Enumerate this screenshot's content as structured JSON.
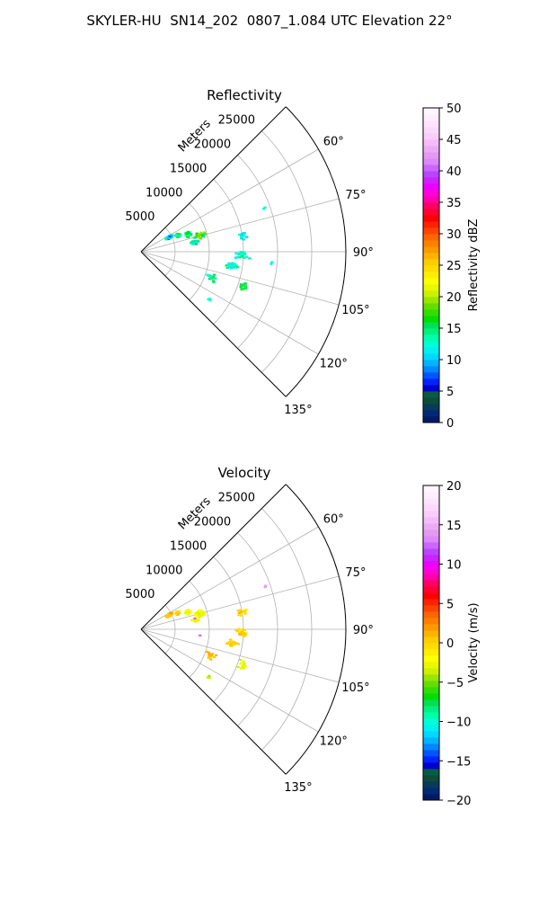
{
  "figure": {
    "suptitle": "SKYLER-HU  SN14_202  0807_1.084 UTC Elevation 22°"
  },
  "colors": {
    "grid": "#b0b0b0",
    "axis": "#000000"
  },
  "chart_data": [
    {
      "type": "ppi-sector",
      "title": "Reflectivity",
      "range_label": "Meters",
      "range_ticks": [
        5000,
        10000,
        15000,
        20000,
        25000
      ],
      "range_tick_labels": [
        "5000",
        "10000",
        "15000",
        "20000",
        "25000"
      ],
      "range_max": 30000,
      "azimuth_range_deg": [
        45,
        135
      ],
      "azimuth_ticks_deg": [
        60,
        75,
        90,
        105,
        120,
        135
      ],
      "azimuth_tick_labels": [
        "60°",
        "75°",
        "90°",
        "105°",
        "120°",
        "135°"
      ],
      "colorbar": {
        "label": "Reflectivity dBZ",
        "vmin": 0,
        "vmax": 50,
        "ticks": [
          0,
          5,
          10,
          15,
          20,
          25,
          30,
          35,
          40,
          45,
          50
        ],
        "tick_labels": [
          "0",
          "5",
          "10",
          "15",
          "20",
          "25",
          "30",
          "35",
          "40",
          "45",
          "50"
        ],
        "colors": [
          "#001a66",
          "#002a77",
          "#0a3a5a",
          "#0b4d3a",
          "#0a5c40",
          "#0000cc",
          "#0022ff",
          "#0055ff",
          "#0088ff",
          "#00b4ff",
          "#00d8ff",
          "#00f0f0",
          "#00ffd8",
          "#00ffaa",
          "#00f080",
          "#00e050",
          "#00dd00",
          "#33dd00",
          "#66dd00",
          "#99e600",
          "#ccf000",
          "#e8f800",
          "#ffff00",
          "#ffee00",
          "#ffdd00",
          "#ffcc00",
          "#ffb300",
          "#ff9900",
          "#ff7f00",
          "#ff6600",
          "#ff4400",
          "#ff2200",
          "#ff0000",
          "#ff0033",
          "#ff0066",
          "#ff00aa",
          "#ff00dd",
          "#ee00ff",
          "#cc22ff",
          "#bb44ff",
          "#cc66ff",
          "#dd88ff",
          "#e399ee",
          "#ecaaf5",
          "#f4bbf8",
          "#f8cdfa",
          "#fbd9fc",
          "#fde3fd",
          "#feeefe",
          "#fff5ff"
        ]
      },
      "clusters": [
        {
          "az": 63,
          "r": 4700,
          "dr": 750,
          "daz": 4,
          "n": 45,
          "v": 10,
          "spread": 4,
          "seed": 11
        },
        {
          "az": 66,
          "r": 5900,
          "dr": 500,
          "daz": 4,
          "n": 32,
          "v": 16,
          "spread": 4,
          "seed": 12
        },
        {
          "az": 70,
          "r": 7400,
          "dr": 550,
          "daz": 4,
          "n": 40,
          "v": 14,
          "spread": 4,
          "seed": 13
        },
        {
          "az": 75,
          "r": 8900,
          "dr": 1100,
          "daz": 4,
          "n": 44,
          "v": 17,
          "spread": 4,
          "seed": 14
        },
        {
          "az": 80,
          "r": 8000,
          "dr": 800,
          "daz": 3,
          "n": 15,
          "v": 12,
          "spread": 3,
          "seed": 15
        },
        {
          "az": 81,
          "r": 15100,
          "dr": 900,
          "daz": 3,
          "n": 16,
          "v": 12,
          "spread": 2,
          "seed": 16
        },
        {
          "az": 92,
          "r": 14800,
          "dr": 1500,
          "daz": 3,
          "n": 30,
          "v": 13,
          "spread": 2,
          "seed": 17
        },
        {
          "az": 99,
          "r": 13400,
          "dr": 1200,
          "daz": 3,
          "n": 32,
          "v": 13,
          "spread": 2,
          "seed": 18
        },
        {
          "az": 110,
          "r": 11000,
          "dr": 1200,
          "daz": 4,
          "n": 20,
          "v": 14,
          "spread": 2,
          "seed": 19
        },
        {
          "az": 109,
          "r": 15800,
          "dr": 700,
          "daz": 3,
          "n": 20,
          "v": 16,
          "spread": 2,
          "seed": 20
        },
        {
          "az": 71,
          "r": 19200,
          "dr": 300,
          "daz": 1,
          "n": 2,
          "v": 13,
          "spread": 1,
          "seed": 21
        },
        {
          "az": 125,
          "r": 12200,
          "dr": 300,
          "daz": 1,
          "n": 3,
          "v": 12,
          "spread": 1,
          "seed": 22
        },
        {
          "az": 95,
          "r": 19200,
          "dr": 200,
          "daz": 1,
          "n": 2,
          "v": 12,
          "spread": 1,
          "seed": 23
        }
      ]
    },
    {
      "type": "ppi-sector",
      "title": "Velocity",
      "range_label": "Meters",
      "range_ticks": [
        5000,
        10000,
        15000,
        20000,
        25000
      ],
      "range_tick_labels": [
        "5000",
        "10000",
        "15000",
        "20000",
        "25000"
      ],
      "range_max": 30000,
      "azimuth_range_deg": [
        45,
        135
      ],
      "azimuth_ticks_deg": [
        60,
        75,
        90,
        105,
        120,
        135
      ],
      "azimuth_tick_labels": [
        "60°",
        "75°",
        "90°",
        "105°",
        "120°",
        "135°"
      ],
      "colorbar": {
        "label": "Velocity (m/s)",
        "vmin": -20,
        "vmax": 20,
        "ticks": [
          -20,
          -15,
          -10,
          -5,
          0,
          5,
          10,
          15,
          20
        ],
        "tick_labels": [
          "−20",
          "−15",
          "−10",
          "−5",
          "0",
          "5",
          "10",
          "15",
          "20"
        ],
        "colors": [
          "#001a66",
          "#002a77",
          "#0a3a5a",
          "#0b4d3a",
          "#0a5c40",
          "#0000cc",
          "#0022ff",
          "#0055ff",
          "#0088ff",
          "#00b4ff",
          "#00d8ff",
          "#00f0f0",
          "#00ffd8",
          "#00ffaa",
          "#00f080",
          "#00e050",
          "#00dd00",
          "#33dd00",
          "#66dd00",
          "#99e600",
          "#ccf000",
          "#e8f800",
          "#ffff00",
          "#ffee00",
          "#ffdd00",
          "#ffcc00",
          "#ffb300",
          "#ff9900",
          "#ff7f00",
          "#ff6600",
          "#ff4400",
          "#ff2200",
          "#ff0000",
          "#ff0033",
          "#ff0066",
          "#ff00aa",
          "#ff00dd",
          "#ee00ff",
          "#cc22ff",
          "#bb44ff",
          "#cc66ff",
          "#dd88ff",
          "#e399ee",
          "#ecaaf5",
          "#f4bbf8",
          "#f8cdfa",
          "#fbd9fc",
          "#fde3fd",
          "#feeefe",
          "#fff5ff"
        ]
      },
      "clusters": [
        {
          "az": 63,
          "r": 4700,
          "dr": 750,
          "daz": 4,
          "n": 45,
          "v": 1,
          "spread": 1,
          "seed": 31
        },
        {
          "az": 66,
          "r": 5900,
          "dr": 500,
          "daz": 4,
          "n": 32,
          "v": 0,
          "spread": 1,
          "seed": 32
        },
        {
          "az": 70,
          "r": 7400,
          "dr": 550,
          "daz": 4,
          "n": 40,
          "v": -2,
          "spread": 1,
          "seed": 33
        },
        {
          "az": 75,
          "r": 8900,
          "dr": 1100,
          "daz": 4,
          "n": 44,
          "v": -3,
          "spread": 1,
          "seed": 34
        },
        {
          "az": 80,
          "r": 8000,
          "dr": 800,
          "daz": 3,
          "n": 15,
          "v": -2,
          "spread": 1,
          "seed": 35
        },
        {
          "az": 81,
          "r": 15100,
          "dr": 900,
          "daz": 3,
          "n": 16,
          "v": 0,
          "spread": 1,
          "seed": 36
        },
        {
          "az": 92,
          "r": 14800,
          "dr": 1500,
          "daz": 3,
          "n": 30,
          "v": 0,
          "spread": 1,
          "seed": 37
        },
        {
          "az": 99,
          "r": 13400,
          "dr": 1200,
          "daz": 3,
          "n": 32,
          "v": 0,
          "spread": 1,
          "seed": 38
        },
        {
          "az": 110,
          "r": 11000,
          "dr": 1200,
          "daz": 4,
          "n": 20,
          "v": 1,
          "spread": 1,
          "seed": 39
        },
        {
          "az": 109,
          "r": 15800,
          "dr": 700,
          "daz": 3,
          "n": 20,
          "v": -3,
          "spread": 1,
          "seed": 40
        },
        {
          "az": 71,
          "r": 19200,
          "dr": 300,
          "daz": 1,
          "n": 2,
          "v": 14,
          "spread": 0,
          "seed": 41
        },
        {
          "az": 125,
          "r": 12200,
          "dr": 300,
          "daz": 1,
          "n": 3,
          "v": -4,
          "spread": 1,
          "seed": 42
        },
        {
          "az": 79,
          "r": 8100,
          "dr": 100,
          "daz": 1,
          "n": 1,
          "v": 12,
          "spread": 0,
          "seed": 43
        },
        {
          "az": 96,
          "r": 8700,
          "dr": 100,
          "daz": 1,
          "n": 1,
          "v": 12,
          "spread": 0,
          "seed": 44
        }
      ]
    }
  ]
}
